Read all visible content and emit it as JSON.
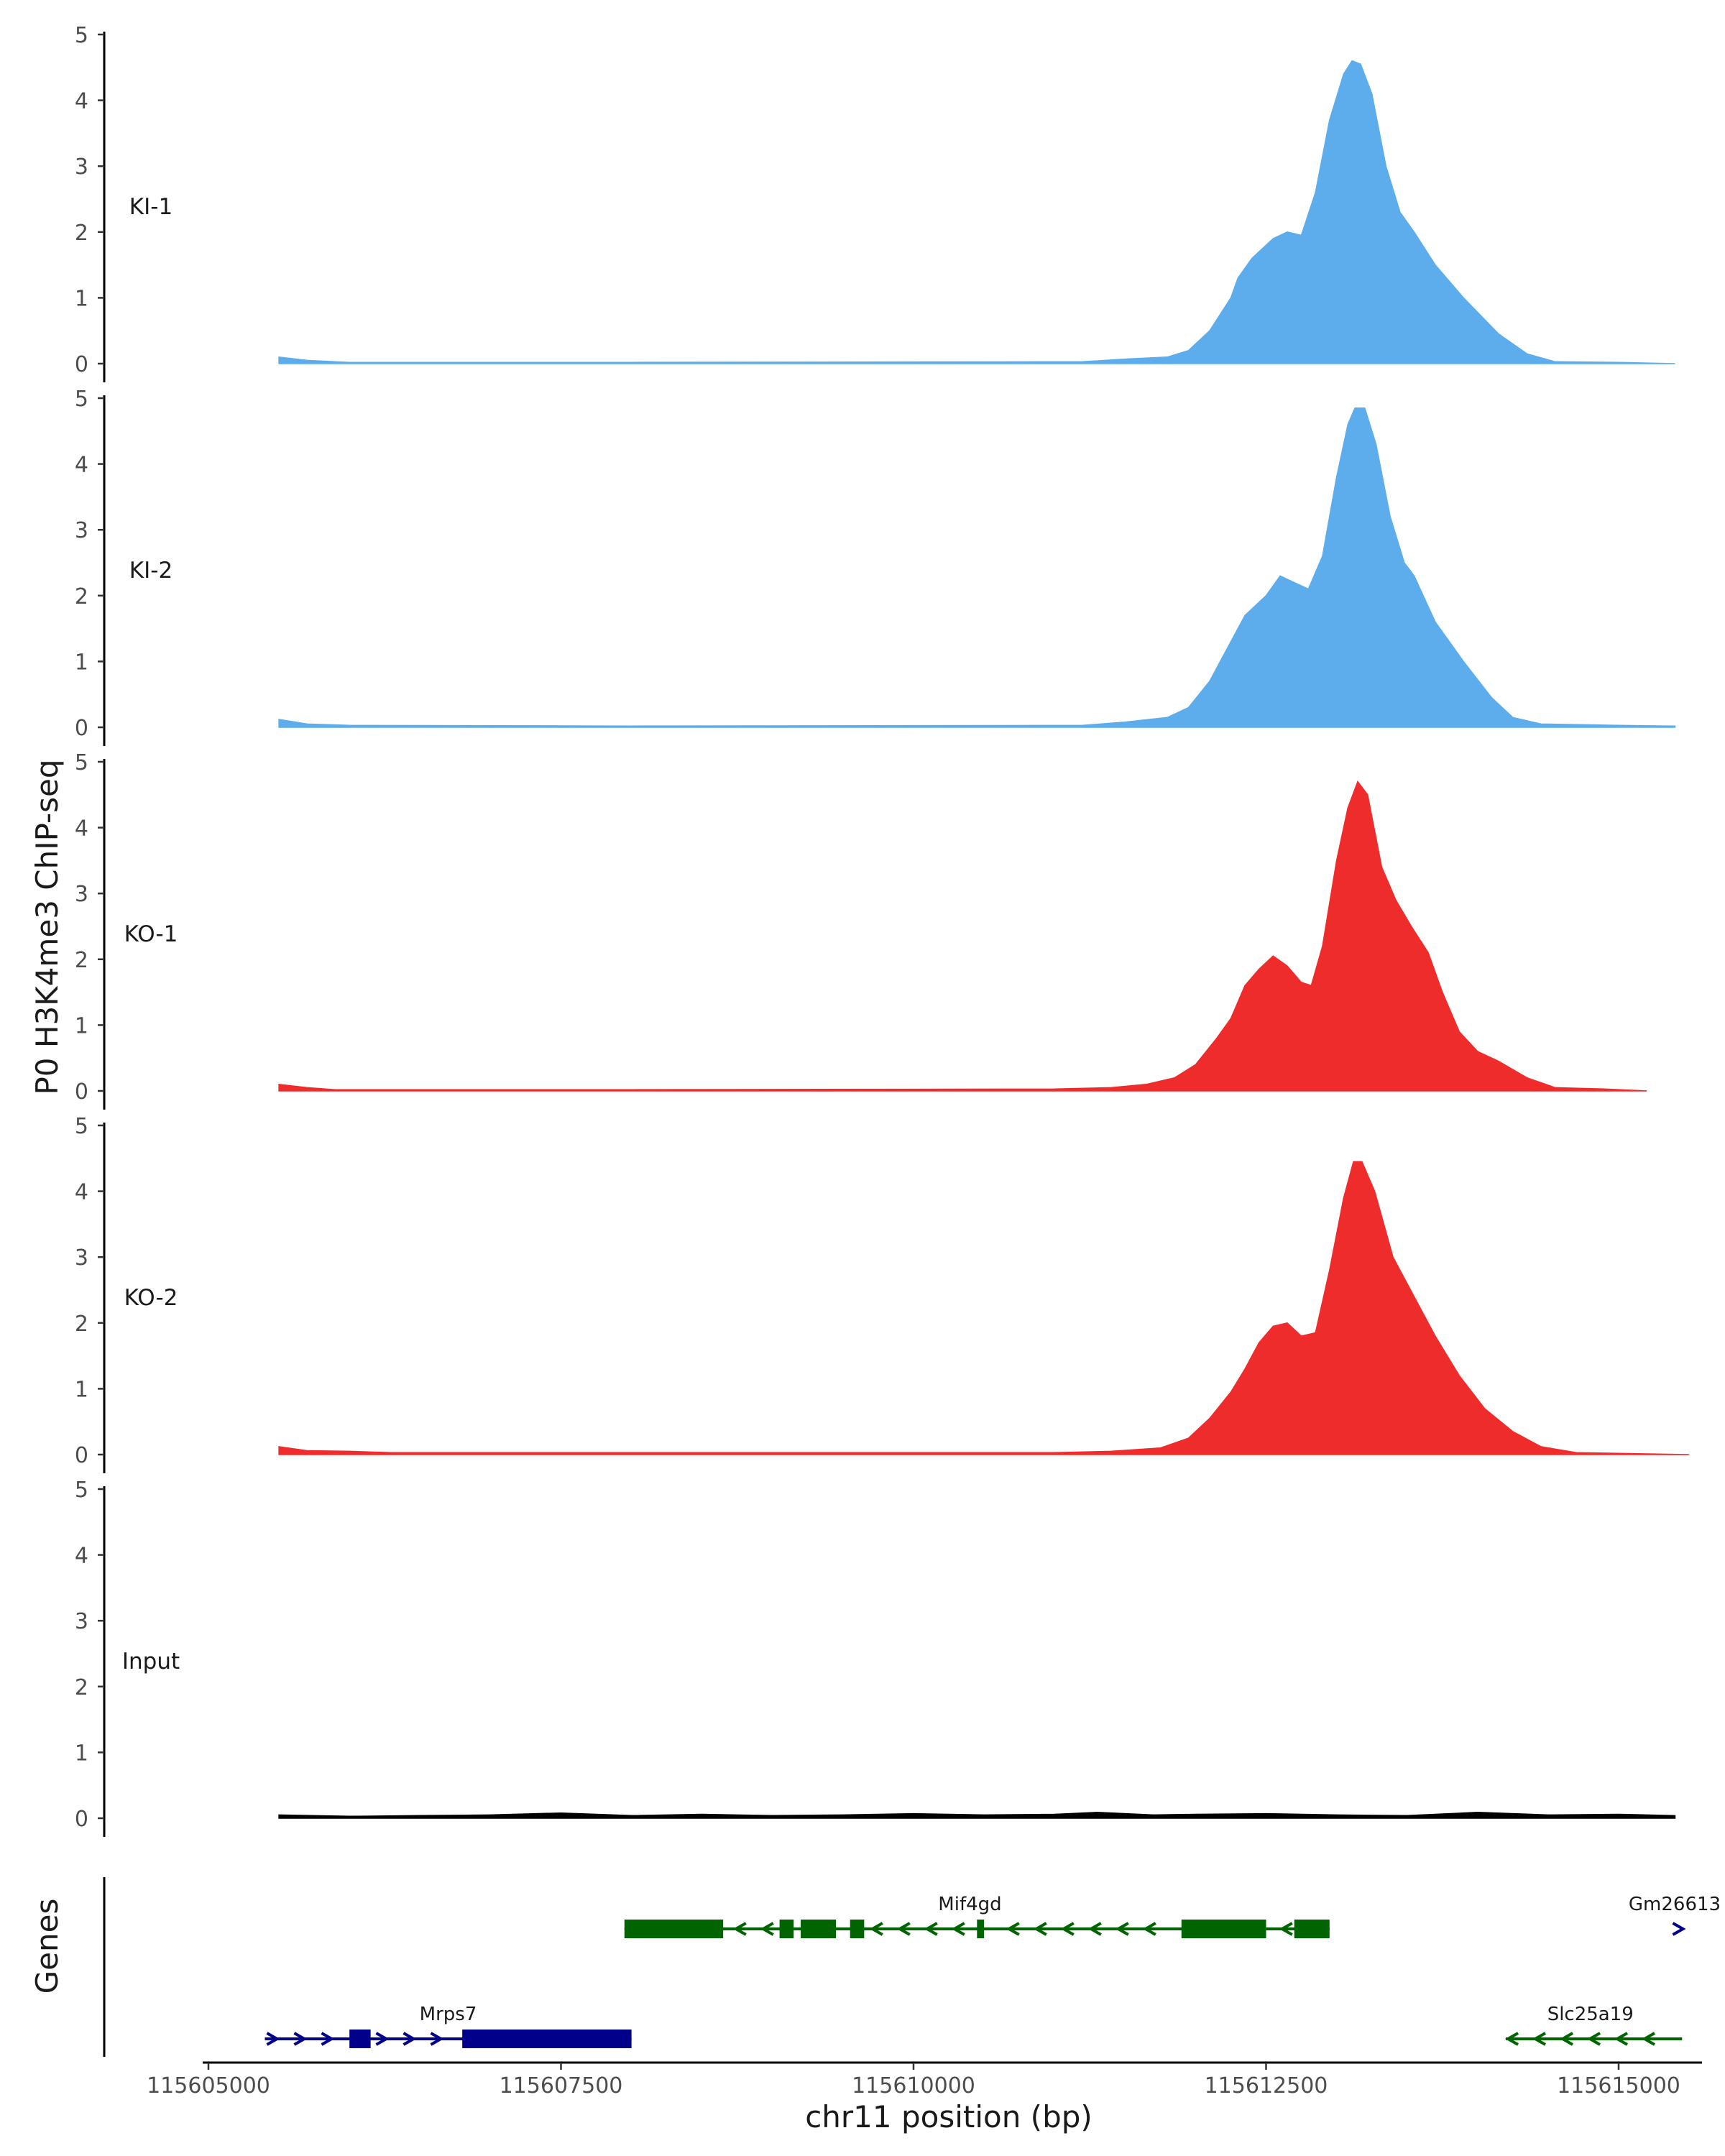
{
  "chart_data": {
    "type": "area",
    "ylabel": "P0 H3K4me3 ChIP-seq",
    "xlabel": "chr11 position (bp)",
    "chromosome": "chr11",
    "xlim": [
      115604000,
      115616000
    ],
    "ylim": [
      0,
      5
    ],
    "yticks": [
      0,
      1,
      2,
      3,
      4,
      5
    ],
    "xticks": [
      115605000,
      115607500,
      115610000,
      115612500,
      115615000
    ],
    "xtick_labels": [
      "115605000",
      "115607500",
      "115610000",
      "115612500",
      "115615000"
    ],
    "data_range": [
      115605500,
      115615400
    ],
    "tracks": [
      {
        "name": "KI-1",
        "color": "#5DADEC",
        "points": [
          [
            115605500,
            0.1
          ],
          [
            115605700,
            0.05
          ],
          [
            115606000,
            0.02
          ],
          [
            115608000,
            0.02
          ],
          [
            115611200,
            0.03
          ],
          [
            115611500,
            0.07
          ],
          [
            115611800,
            0.1
          ],
          [
            115611950,
            0.2
          ],
          [
            115612100,
            0.5
          ],
          [
            115612250,
            1.0
          ],
          [
            115612300,
            1.3
          ],
          [
            115612400,
            1.6
          ],
          [
            115612550,
            1.9
          ],
          [
            115612650,
            2.0
          ],
          [
            115612750,
            1.95
          ],
          [
            115612850,
            2.6
          ],
          [
            115612950,
            3.7
          ],
          [
            115613050,
            4.4
          ],
          [
            115613110,
            4.6
          ],
          [
            115613170,
            4.55
          ],
          [
            115613250,
            4.1
          ],
          [
            115613350,
            3.0
          ],
          [
            115613450,
            2.3
          ],
          [
            115613550,
            2.0
          ],
          [
            115613700,
            1.5
          ],
          [
            115613900,
            1.0
          ],
          [
            115614150,
            0.45
          ],
          [
            115614350,
            0.15
          ],
          [
            115614550,
            0.03
          ],
          [
            115615000,
            0.02
          ],
          [
            115615400,
            0.0
          ]
        ]
      },
      {
        "name": "KI-2",
        "color": "#5DADEC",
        "points": [
          [
            115605500,
            0.12
          ],
          [
            115605700,
            0.05
          ],
          [
            115606000,
            0.03
          ],
          [
            115608000,
            0.02
          ],
          [
            115611200,
            0.03
          ],
          [
            115611500,
            0.08
          ],
          [
            115611800,
            0.15
          ],
          [
            115611950,
            0.3
          ],
          [
            115612100,
            0.7
          ],
          [
            115612250,
            1.3
          ],
          [
            115612350,
            1.7
          ],
          [
            115612500,
            2.0
          ],
          [
            115612600,
            2.3
          ],
          [
            115612700,
            2.2
          ],
          [
            115612800,
            2.1
          ],
          [
            115612900,
            2.6
          ],
          [
            115613000,
            3.8
          ],
          [
            115613080,
            4.6
          ],
          [
            115613130,
            4.85
          ],
          [
            115613200,
            4.85
          ],
          [
            115613280,
            4.3
          ],
          [
            115613380,
            3.2
          ],
          [
            115613480,
            2.5
          ],
          [
            115613550,
            2.3
          ],
          [
            115613700,
            1.6
          ],
          [
            115613900,
            1.0
          ],
          [
            115614100,
            0.45
          ],
          [
            115614250,
            0.15
          ],
          [
            115614450,
            0.05
          ],
          [
            115615000,
            0.03
          ],
          [
            115615400,
            0.02
          ]
        ]
      },
      {
        "name": "KO-1",
        "color": "#EE2C2C",
        "points": [
          [
            115605500,
            0.1
          ],
          [
            115605700,
            0.05
          ],
          [
            115605900,
            0.02
          ],
          [
            115608000,
            0.02
          ],
          [
            115611000,
            0.03
          ],
          [
            115611400,
            0.05
          ],
          [
            115611650,
            0.1
          ],
          [
            115611850,
            0.2
          ],
          [
            115612000,
            0.4
          ],
          [
            115612150,
            0.8
          ],
          [
            115612250,
            1.1
          ],
          [
            115612350,
            1.6
          ],
          [
            115612450,
            1.85
          ],
          [
            115612550,
            2.05
          ],
          [
            115612650,
            1.9
          ],
          [
            115612750,
            1.65
          ],
          [
            115612820,
            1.6
          ],
          [
            115612900,
            2.2
          ],
          [
            115613000,
            3.5
          ],
          [
            115613080,
            4.3
          ],
          [
            115613150,
            4.7
          ],
          [
            115613220,
            4.5
          ],
          [
            115613320,
            3.4
          ],
          [
            115613420,
            2.9
          ],
          [
            115613530,
            2.5
          ],
          [
            115613650,
            2.1
          ],
          [
            115613750,
            1.5
          ],
          [
            115613870,
            0.9
          ],
          [
            115614000,
            0.6
          ],
          [
            115614150,
            0.45
          ],
          [
            115614350,
            0.2
          ],
          [
            115614550,
            0.05
          ],
          [
            115614900,
            0.03
          ],
          [
            115615200,
            0.0
          ]
        ]
      },
      {
        "name": "KO-2",
        "color": "#EE2C2C",
        "points": [
          [
            115605500,
            0.12
          ],
          [
            115605700,
            0.06
          ],
          [
            115606000,
            0.05
          ],
          [
            115606300,
            0.03
          ],
          [
            115608000,
            0.03
          ],
          [
            115611000,
            0.03
          ],
          [
            115611400,
            0.05
          ],
          [
            115611750,
            0.1
          ],
          [
            115611950,
            0.25
          ],
          [
            115612100,
            0.55
          ],
          [
            115612250,
            0.95
          ],
          [
            115612350,
            1.3
          ],
          [
            115612450,
            1.7
          ],
          [
            115612550,
            1.95
          ],
          [
            115612650,
            2.0
          ],
          [
            115612750,
            1.8
          ],
          [
            115612850,
            1.85
          ],
          [
            115612950,
            2.8
          ],
          [
            115613050,
            3.9
          ],
          [
            115613120,
            4.45
          ],
          [
            115613180,
            4.45
          ],
          [
            115613270,
            4.0
          ],
          [
            115613400,
            3.0
          ],
          [
            115613550,
            2.4
          ],
          [
            115613700,
            1.8
          ],
          [
            115613870,
            1.2
          ],
          [
            115614050,
            0.7
          ],
          [
            115614250,
            0.35
          ],
          [
            115614450,
            0.12
          ],
          [
            115614700,
            0.03
          ],
          [
            115615000,
            0.02
          ],
          [
            115615500,
            0.0
          ]
        ]
      },
      {
        "name": "Input",
        "color": "#000000",
        "points": [
          [
            115605500,
            0.05
          ],
          [
            115606000,
            0.03
          ],
          [
            115606500,
            0.04
          ],
          [
            115607000,
            0.05
          ],
          [
            115607500,
            0.08
          ],
          [
            115608000,
            0.04
          ],
          [
            115608500,
            0.06
          ],
          [
            115609000,
            0.04
          ],
          [
            115609500,
            0.05
          ],
          [
            115610000,
            0.07
          ],
          [
            115610500,
            0.05
          ],
          [
            115611000,
            0.06
          ],
          [
            115611300,
            0.09
          ],
          [
            115611700,
            0.05
          ],
          [
            115612000,
            0.06
          ],
          [
            115612500,
            0.07
          ],
          [
            115613000,
            0.05
          ],
          [
            115613500,
            0.04
          ],
          [
            115614000,
            0.09
          ],
          [
            115614500,
            0.05
          ],
          [
            115615000,
            0.06
          ],
          [
            115615400,
            0.04
          ]
        ]
      }
    ],
    "genes_ylabel": "Genes",
    "genes": [
      {
        "name": "Mif4gd",
        "strand": "-",
        "color": "#006400",
        "row": 0,
        "label_pos": 115610400,
        "start": 115607950,
        "end": 115612950,
        "exons": [
          [
            115607950,
            115608650
          ],
          [
            115609050,
            115609150
          ],
          [
            115609200,
            115609450
          ],
          [
            115609550,
            115609650
          ],
          [
            115610450,
            115610500
          ],
          [
            115611900,
            115612500
          ],
          [
            115612700,
            115612950
          ]
        ]
      },
      {
        "name": "Gm26613",
        "strand": "+",
        "color": "#00008B",
        "row": 0,
        "label_pos": 115615450,
        "start": 115615400,
        "end": 115615450,
        "exons": []
      },
      {
        "name": "Mrps7",
        "strand": "+",
        "color": "#00008B",
        "row": 1,
        "label_pos": 115606700,
        "start": 115605400,
        "end": 115608000,
        "exons": [
          [
            115606000,
            115606150
          ],
          [
            115606800,
            115608000
          ]
        ]
      },
      {
        "name": "Slc25a19",
        "strand": "-",
        "color": "#006400",
        "row": 1,
        "label_pos": 115614800,
        "start": 115614200,
        "end": 115615450,
        "exons": []
      }
    ]
  }
}
